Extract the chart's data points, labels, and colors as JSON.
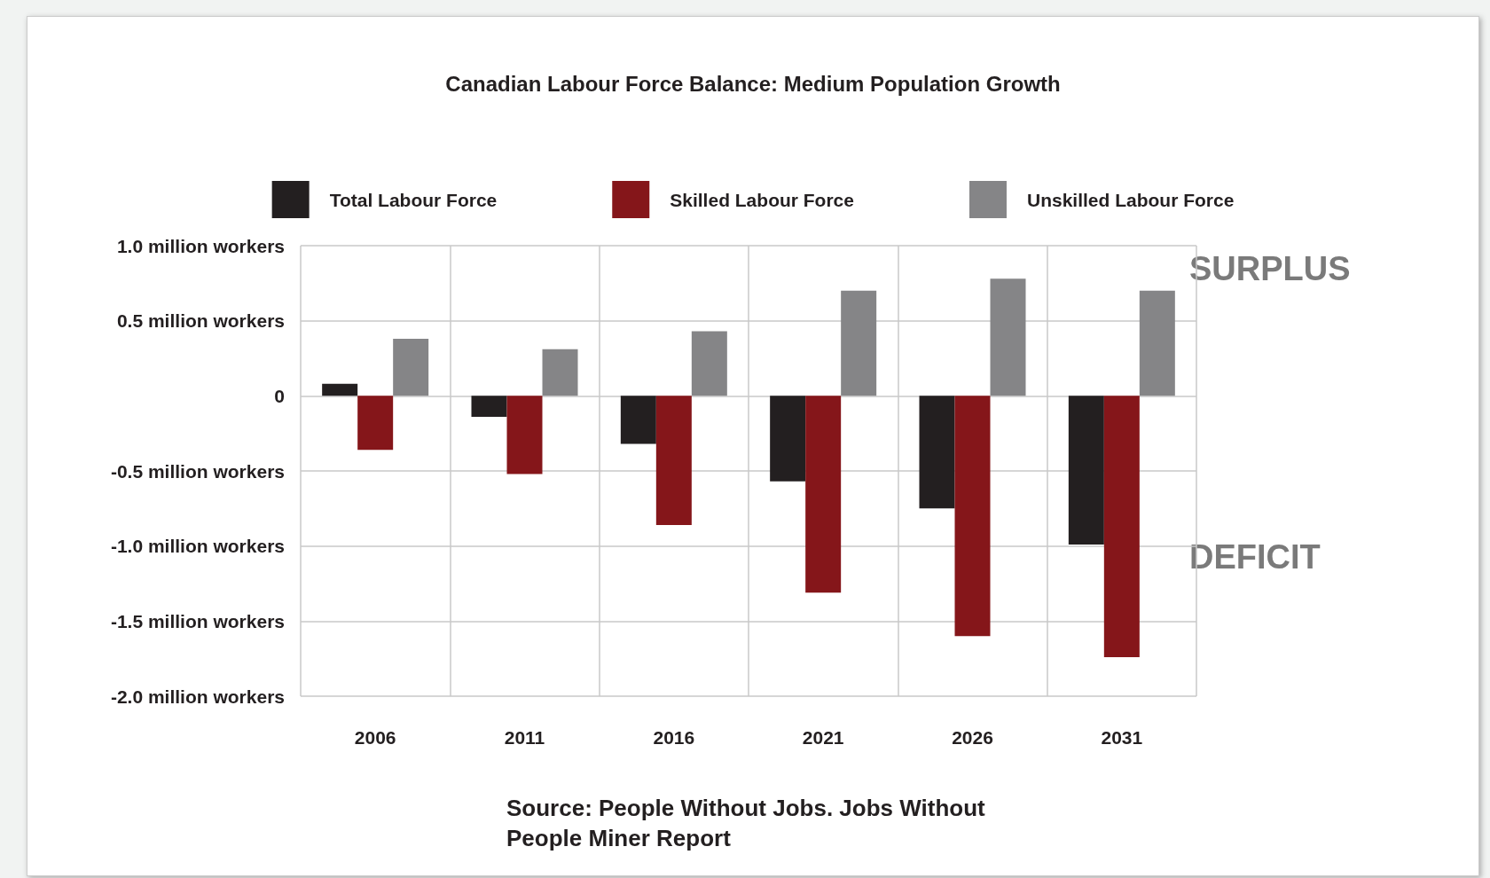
{
  "chart_data": {
    "type": "bar",
    "title": "Canadian Labour Force Balance: Medium Population Growth",
    "categories": [
      "2006",
      "2011",
      "2016",
      "2021",
      "2026",
      "2031"
    ],
    "series": [
      {
        "name": "Total Labour Force",
        "color": "#231f20",
        "values": [
          0.08,
          -0.14,
          -0.32,
          -0.57,
          -0.75,
          -0.99
        ]
      },
      {
        "name": "Skilled Labour Force",
        "color": "#85161a",
        "values": [
          -0.36,
          -0.52,
          -0.86,
          -1.31,
          -1.6,
          -1.74
        ]
      },
      {
        "name": "Unskilled Labour Force",
        "color": "#858587",
        "values": [
          0.38,
          0.31,
          0.43,
          0.7,
          0.78,
          0.7
        ]
      }
    ],
    "ylim": [
      -2,
      1
    ],
    "yticks": [
      {
        "value": 1,
        "label": "1.0 million workers"
      },
      {
        "value": 0.5,
        "label": "0.5 million workers"
      },
      0,
      {
        "value": -0.5,
        "label": "-0.5 million workers"
      },
      {
        "value": -1,
        "label": "-1.0 million workers"
      },
      {
        "value": -1.5,
        "label": "-1.5 million workers"
      },
      {
        "value": -2,
        "label": "-2.0 million workers"
      }
    ],
    "grid": true,
    "legend": "top",
    "annotations": [
      "SURPLUS",
      "DEFICIT",
      "Source: People Without Jobs. Jobs Without People Miner Report"
    ]
  }
}
